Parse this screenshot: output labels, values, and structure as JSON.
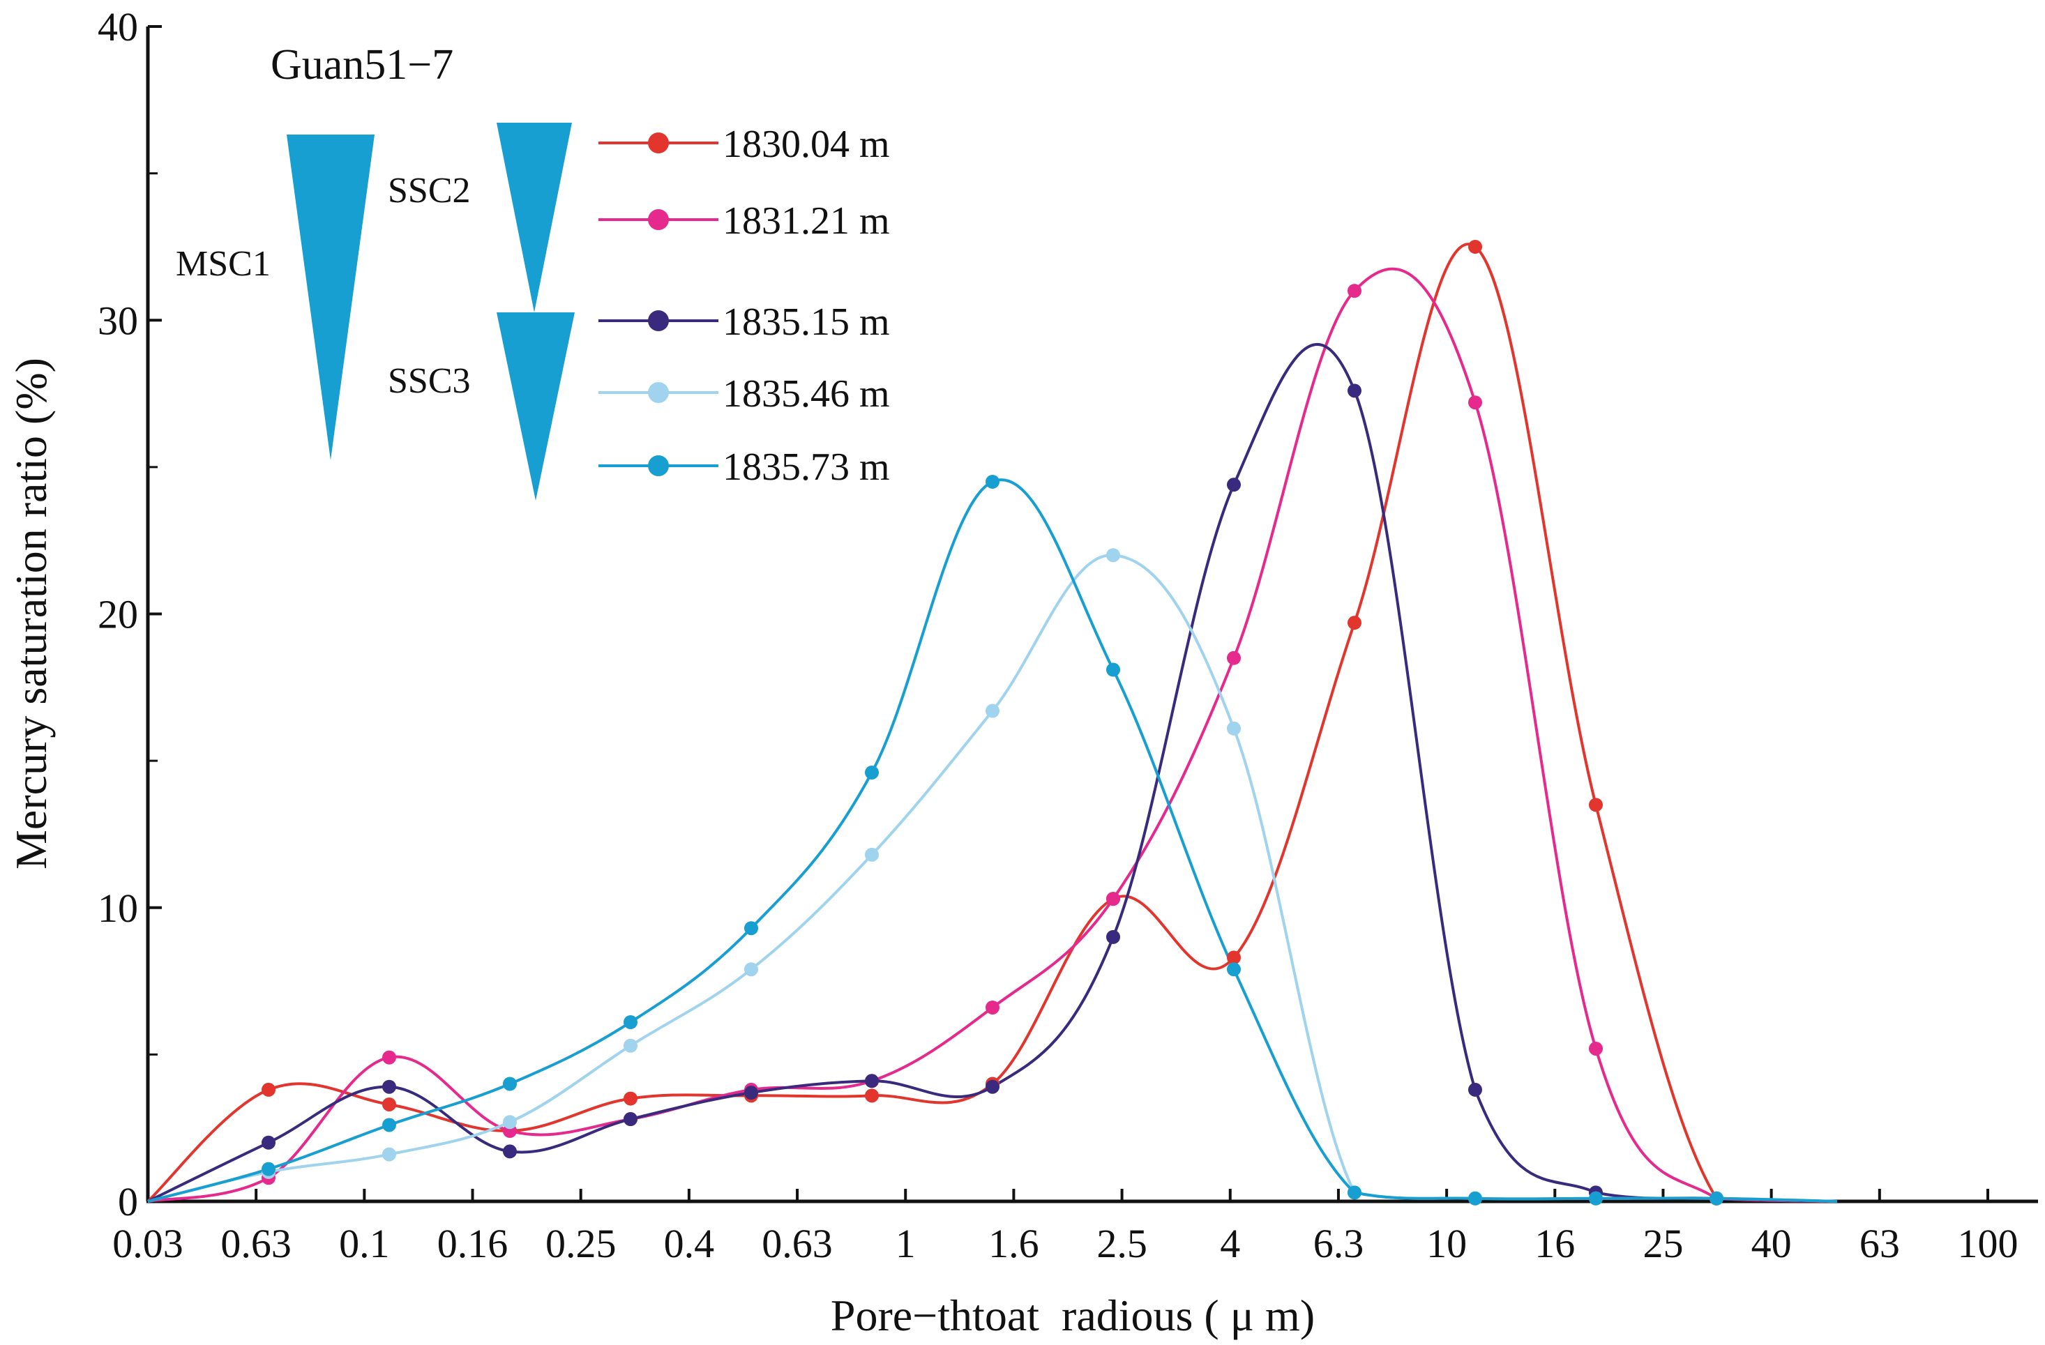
{
  "chart_data": {
    "type": "line",
    "title": "",
    "annotation": "Guan51−7",
    "xlabel": "Pore−thtoat  radious ( μ m)",
    "ylabel": "Mercury saturation ratio (%)",
    "categories": [
      "0.03",
      "0.63",
      "0.1",
      "0.16",
      "0.25",
      "0.4",
      "0.63",
      "1",
      "1.6",
      "2.5",
      "4",
      "6.3",
      "10",
      "16",
      "25",
      "40",
      "63",
      "100"
    ],
    "ylim": [
      0,
      40
    ],
    "yticks": [
      "0",
      "10",
      "20",
      "30",
      "40"
    ],
    "x_scale": "categorical; data points at half-category positions",
    "legend_position": "top-left",
    "series": [
      {
        "name": "1830.04 m",
        "color": "#e2352d",
        "x": [
          0,
          1,
          2,
          3,
          4,
          5,
          6,
          7,
          8,
          9,
          10,
          11,
          12,
          13,
          14
        ],
        "values": [
          0,
          3.8,
          3.3,
          2.4,
          3.5,
          3.6,
          3.6,
          4.0,
          10.3,
          8.3,
          19.7,
          32.5,
          13.5,
          0.1,
          0
        ]
      },
      {
        "name": "1831.21 m",
        "color": "#e6298d",
        "x": [
          0,
          1,
          2,
          3,
          4,
          5,
          6,
          7,
          8,
          9,
          10,
          11,
          12,
          13,
          14
        ],
        "values": [
          0,
          0.8,
          4.9,
          2.4,
          2.8,
          3.8,
          4.1,
          6.6,
          10.3,
          18.5,
          31.0,
          27.2,
          5.2,
          0.1,
          0
        ]
      },
      {
        "name": "1835.15 m",
        "color": "#3a2a7e",
        "x": [
          0,
          1,
          2,
          3,
          4,
          5,
          6,
          7,
          8,
          9,
          10,
          11,
          12,
          13,
          14
        ],
        "values": [
          0,
          2.0,
          3.9,
          1.7,
          2.8,
          3.7,
          4.1,
          3.9,
          9.0,
          24.4,
          27.6,
          3.8,
          0.3,
          0.1,
          0
        ]
      },
      {
        "name": "1835.46 m",
        "color": "#9fd3ee",
        "x": [
          0,
          1,
          2,
          3,
          4,
          5,
          6,
          7,
          8,
          9,
          10,
          11,
          12,
          13,
          14
        ],
        "values": [
          0,
          1.0,
          1.6,
          2.7,
          5.3,
          7.9,
          11.8,
          16.7,
          22.0,
          16.1,
          0.3,
          0.1,
          0.1,
          0.1,
          0
        ]
      },
      {
        "name": "1835.73 m",
        "color": "#169fd0",
        "x": [
          0,
          1,
          2,
          3,
          4,
          5,
          6,
          7,
          8,
          9,
          10,
          11,
          12,
          13,
          14
        ],
        "values": [
          0,
          1.1,
          2.6,
          4.0,
          6.1,
          9.3,
          14.6,
          24.5,
          18.1,
          7.9,
          0.3,
          0.1,
          0.1,
          0.1,
          0
        ]
      }
    ],
    "sequence_markers": [
      {
        "label": "MSC1",
        "orientation": "downward"
      },
      {
        "label": "SSC2",
        "orientation": "downward"
      },
      {
        "label": "SSC3",
        "orientation": "downward"
      }
    ]
  }
}
